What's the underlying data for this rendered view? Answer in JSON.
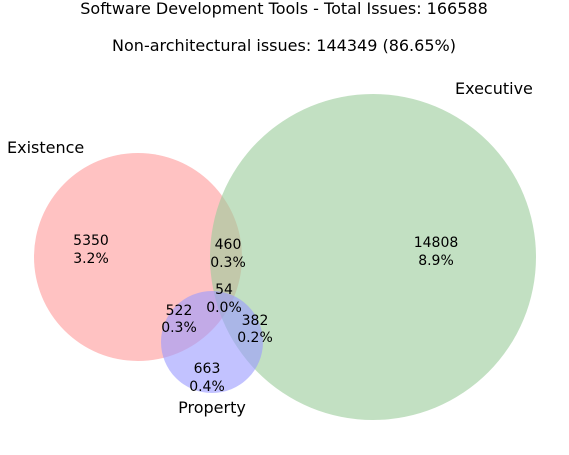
{
  "chart_data": {
    "type": "venn",
    "title": "Software Development Tools - Total Issues: 166588",
    "subtitle": "Non-architectural issues: 144349 (86.65%)",
    "sets": [
      {
        "name": "Existence",
        "color": "#ff9999"
      },
      {
        "name": "Executive",
        "color": "#99cc99"
      },
      {
        "name": "Property",
        "color": "#9999ff"
      }
    ],
    "regions": [
      {
        "sets": [
          "Existence"
        ],
        "count": "5350",
        "percent": "3.2%"
      },
      {
        "sets": [
          "Executive"
        ],
        "count": "14808",
        "percent": "8.9%"
      },
      {
        "sets": [
          "Property"
        ],
        "count": "663",
        "percent": "0.4%"
      },
      {
        "sets": [
          "Existence",
          "Executive"
        ],
        "count": "460",
        "percent": "0.3%"
      },
      {
        "sets": [
          "Existence",
          "Property"
        ],
        "count": "522",
        "percent": "0.3%"
      },
      {
        "sets": [
          "Executive",
          "Property"
        ],
        "count": "382",
        "percent": "0.2%"
      },
      {
        "sets": [
          "Existence",
          "Executive",
          "Property"
        ],
        "count": "54",
        "percent": "0.0%"
      }
    ]
  }
}
